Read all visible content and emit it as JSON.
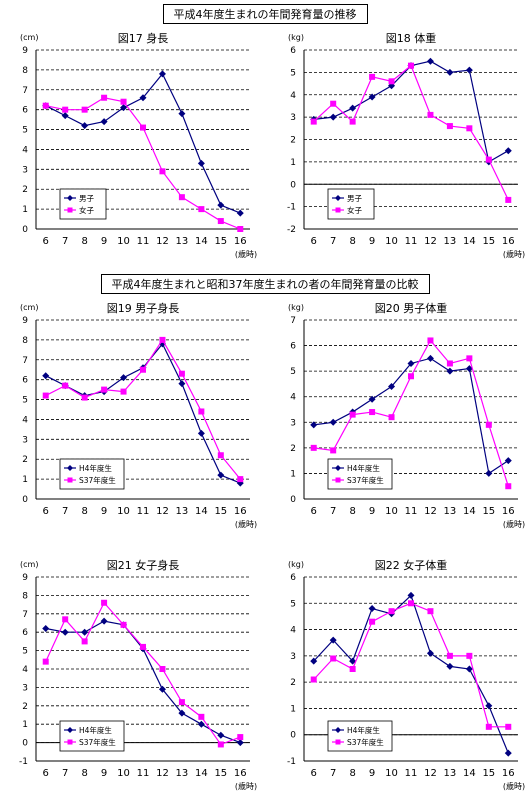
{
  "section_titles": [
    "平成4年度生まれの年間発育量の推移",
    "平成4年度生まれと昭和37年度生まれの者の年間発育量の比較"
  ],
  "colors": {
    "series1": "#000080",
    "series2": "#ff00ff",
    "grid": "#000000"
  },
  "chart_data": [
    {
      "type": "line",
      "title": "図17 身長",
      "unit": "(cm)",
      "x_unit": "(歳時)",
      "x": [
        6,
        7,
        8,
        9,
        10,
        11,
        12,
        13,
        14,
        15,
        16
      ],
      "ylim": [
        0,
        9
      ],
      "yticks": [
        0,
        1,
        2,
        3,
        4,
        5,
        6,
        7,
        8,
        9
      ],
      "grid": "horizontal-dashed",
      "legend": "bottom-left",
      "series": [
        {
          "name": "男子",
          "marker": "diamond",
          "values": [
            6.2,
            5.7,
            5.2,
            5.4,
            6.1,
            6.6,
            7.8,
            5.8,
            3.3,
            1.2,
            0.8
          ]
        },
        {
          "name": "女子",
          "marker": "square",
          "values": [
            6.2,
            6.0,
            6.0,
            6.6,
            6.4,
            5.1,
            2.9,
            1.6,
            1.0,
            0.4,
            0.0
          ]
        }
      ]
    },
    {
      "type": "line",
      "title": "図18 体重",
      "unit": "(kg)",
      "x_unit": "(歳時)",
      "x": [
        6,
        7,
        8,
        9,
        10,
        11,
        12,
        13,
        14,
        15,
        16
      ],
      "ylim": [
        -2,
        6
      ],
      "yticks": [
        -2,
        -1,
        0,
        1,
        2,
        3,
        4,
        5,
        6
      ],
      "grid": "horizontal-dashed",
      "legend": "bottom-left",
      "series": [
        {
          "name": "男子",
          "marker": "diamond",
          "values": [
            2.9,
            3.0,
            3.4,
            3.9,
            4.4,
            5.3,
            5.5,
            5.0,
            5.1,
            1.0,
            1.5
          ]
        },
        {
          "name": "女子",
          "marker": "square",
          "values": [
            2.8,
            3.6,
            2.8,
            4.8,
            4.6,
            5.3,
            3.1,
            2.6,
            2.5,
            1.1,
            -0.7
          ]
        }
      ]
    },
    {
      "type": "line",
      "title": "図19 男子身長",
      "unit": "(cm)",
      "x_unit": "(歳時)",
      "x": [
        6,
        7,
        8,
        9,
        10,
        11,
        12,
        13,
        14,
        15,
        16
      ],
      "ylim": [
        0,
        9
      ],
      "yticks": [
        0,
        1,
        2,
        3,
        4,
        5,
        6,
        7,
        8,
        9
      ],
      "grid": "horizontal-dashed",
      "legend": "bottom-left",
      "series": [
        {
          "name": "H4年度生",
          "marker": "diamond",
          "values": [
            6.2,
            5.7,
            5.2,
            5.4,
            6.1,
            6.6,
            7.8,
            5.8,
            3.3,
            1.2,
            0.8
          ]
        },
        {
          "name": "S37年度生",
          "marker": "square",
          "values": [
            5.2,
            5.7,
            5.1,
            5.5,
            5.4,
            6.5,
            8.0,
            6.3,
            4.4,
            2.2,
            1.0
          ]
        }
      ]
    },
    {
      "type": "line",
      "title": "図20 男子体重",
      "unit": "(kg)",
      "x_unit": "(歳時)",
      "x": [
        6,
        7,
        8,
        9,
        10,
        11,
        12,
        13,
        14,
        15,
        16
      ],
      "ylim": [
        0,
        7
      ],
      "yticks": [
        0,
        1,
        2,
        3,
        4,
        5,
        6,
        7
      ],
      "grid": "horizontal-dashed",
      "legend": "bottom-left",
      "series": [
        {
          "name": "H4年度生",
          "marker": "diamond",
          "values": [
            2.9,
            3.0,
            3.4,
            3.9,
            4.4,
            5.3,
            5.5,
            5.0,
            5.1,
            1.0,
            1.5
          ]
        },
        {
          "name": "S37年度生",
          "marker": "square",
          "values": [
            2.0,
            1.9,
            3.3,
            3.4,
            3.2,
            4.8,
            6.2,
            5.3,
            5.5,
            2.9,
            0.5
          ]
        }
      ]
    },
    {
      "type": "line",
      "title": "図21 女子身長",
      "unit": "(cm)",
      "x_unit": "(歳時)",
      "x": [
        6,
        7,
        8,
        9,
        10,
        11,
        12,
        13,
        14,
        15,
        16
      ],
      "ylim": [
        -1,
        9
      ],
      "yticks": [
        -1,
        0,
        1,
        2,
        3,
        4,
        5,
        6,
        7,
        8,
        9
      ],
      "grid": "horizontal-dashed",
      "legend": "bottom-left",
      "series": [
        {
          "name": "H4年度生",
          "marker": "diamond",
          "values": [
            6.2,
            6.0,
            6.0,
            6.6,
            6.4,
            5.1,
            2.9,
            1.6,
            1.0,
            0.4,
            0.0
          ]
        },
        {
          "name": "S37年度生",
          "marker": "square",
          "values": [
            4.4,
            6.7,
            5.5,
            7.6,
            6.4,
            5.2,
            4.0,
            2.2,
            1.4,
            -0.1,
            0.3
          ]
        }
      ]
    },
    {
      "type": "line",
      "title": "図22 女子体重",
      "unit": "(kg)",
      "x_unit": "(歳時)",
      "x": [
        6,
        7,
        8,
        9,
        10,
        11,
        12,
        13,
        14,
        15,
        16
      ],
      "ylim": [
        -1,
        6
      ],
      "yticks": [
        -1,
        0,
        1,
        2,
        3,
        4,
        5,
        6
      ],
      "grid": "horizontal-dashed",
      "legend": "bottom-left",
      "series": [
        {
          "name": "H4年度生",
          "marker": "diamond",
          "values": [
            2.8,
            3.6,
            2.8,
            4.8,
            4.6,
            5.3,
            3.1,
            2.6,
            2.5,
            1.1,
            -0.7
          ]
        },
        {
          "name": "S37年度生",
          "marker": "square",
          "values": [
            2.1,
            2.9,
            2.5,
            4.3,
            4.7,
            5.0,
            4.7,
            3.0,
            3.0,
            0.3,
            0.3
          ]
        }
      ]
    }
  ]
}
